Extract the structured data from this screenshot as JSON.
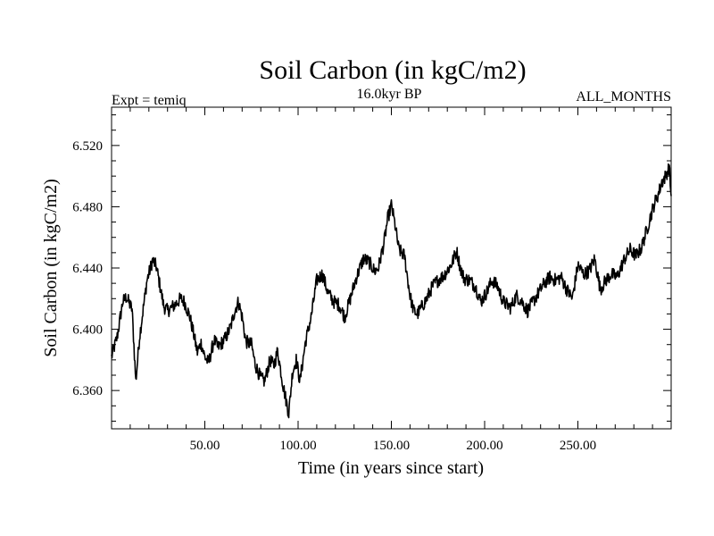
{
  "chart_data": {
    "type": "line",
    "title": "Soil Carbon (in kgC/m2)",
    "subtitle_left": "Expt = temiq",
    "subtitle_center": "16.0kyr BP",
    "subtitle_right": "ALL_MONTHS",
    "xlabel": "Time (in years since start)",
    "ylabel": "Soil Carbon (in kgC/m2)",
    "xlim": [
      0,
      300
    ],
    "ylim": [
      6.335,
      6.545
    ],
    "x_ticks": [
      50,
      100,
      150,
      200,
      250
    ],
    "x_tick_labels": [
      "50.00",
      "100.00",
      "150.00",
      "200.00",
      "250.00"
    ],
    "y_ticks": [
      6.36,
      6.4,
      6.44,
      6.48,
      6.52
    ],
    "y_tick_labels": [
      "6.360",
      "6.400",
      "6.440",
      "6.480",
      "6.520"
    ],
    "grid": false,
    "series": [
      {
        "name": "Soil Carbon",
        "color": "#000000",
        "x": [
          0,
          3,
          6,
          8,
          11,
          13,
          15,
          19,
          22,
          24,
          26,
          28,
          30,
          34,
          37,
          39,
          42,
          44,
          46,
          48,
          50,
          52,
          55,
          57,
          61,
          64,
          66,
          68,
          70,
          72,
          75,
          77,
          80,
          82,
          85,
          87,
          89,
          92,
          95,
          97,
          99,
          101,
          104,
          107,
          110,
          113,
          116,
          119,
          122,
          125,
          128,
          131,
          135,
          138,
          141,
          143,
          146,
          148,
          150,
          152,
          154,
          157,
          160,
          162,
          164,
          166,
          169,
          172,
          175,
          178,
          182,
          185,
          187,
          189,
          192,
          195,
          198,
          201,
          204,
          207,
          210,
          214,
          217,
          220,
          223,
          226,
          229,
          232,
          235,
          238,
          241,
          244,
          247,
          250,
          253,
          256,
          259,
          262,
          265,
          268,
          271,
          275,
          278,
          281,
          284,
          287,
          289,
          291,
          293,
          295,
          297,
          299,
          300
        ],
        "values": [
          6.382,
          6.395,
          6.418,
          6.421,
          6.413,
          6.366,
          6.395,
          6.432,
          6.445,
          6.441,
          6.428,
          6.415,
          6.412,
          6.416,
          6.42,
          6.418,
          6.408,
          6.397,
          6.385,
          6.391,
          6.382,
          6.378,
          6.393,
          6.388,
          6.394,
          6.402,
          6.412,
          6.418,
          6.408,
          6.392,
          6.39,
          6.377,
          6.368,
          6.366,
          6.38,
          6.376,
          6.386,
          6.363,
          6.345,
          6.372,
          6.38,
          6.366,
          6.392,
          6.408,
          6.432,
          6.436,
          6.424,
          6.418,
          6.416,
          6.408,
          6.42,
          6.433,
          6.446,
          6.444,
          6.438,
          6.44,
          6.456,
          6.472,
          6.481,
          6.468,
          6.452,
          6.448,
          6.422,
          6.412,
          6.41,
          6.414,
          6.42,
          6.428,
          6.432,
          6.435,
          6.442,
          6.451,
          6.44,
          6.433,
          6.432,
          6.428,
          6.418,
          6.424,
          6.432,
          6.428,
          6.418,
          6.414,
          6.422,
          6.418,
          6.412,
          6.418,
          6.424,
          6.43,
          6.434,
          6.432,
          6.434,
          6.426,
          6.42,
          6.442,
          6.436,
          6.438,
          6.446,
          6.426,
          6.432,
          6.436,
          6.434,
          6.446,
          6.452,
          6.448,
          6.453,
          6.465,
          6.474,
          6.482,
          6.488,
          6.496,
          6.5,
          6.506,
          6.486
        ]
      }
    ]
  }
}
